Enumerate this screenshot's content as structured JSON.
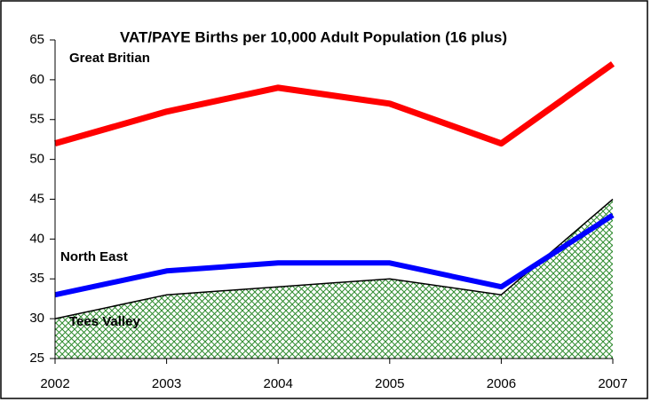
{
  "chart_data": {
    "type": "line",
    "title": "VAT/PAYE Births per 10,000 Adult Population (16 plus)",
    "categories": [
      "2002",
      "2003",
      "2004",
      "2005",
      "2006",
      "2007"
    ],
    "series": [
      {
        "name": "Tees Valley",
        "kind": "area",
        "color": "#2e8b2e",
        "values": [
          30,
          33,
          34,
          35,
          33,
          45
        ]
      },
      {
        "name": "Great Britian",
        "kind": "line",
        "color": "#ff0000",
        "values": [
          52,
          56,
          59,
          57,
          52,
          62
        ]
      },
      {
        "name": "North East",
        "kind": "line",
        "color": "#0000ff",
        "values": [
          33,
          36,
          37,
          37,
          34,
          43
        ]
      }
    ],
    "ylim": [
      25,
      65
    ],
    "yticks": [
      25,
      30,
      35,
      40,
      45,
      50,
      55,
      60,
      65
    ],
    "grid": false
  }
}
